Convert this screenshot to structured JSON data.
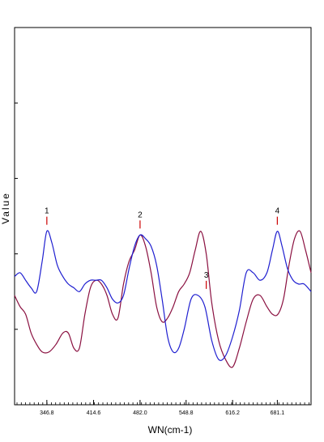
{
  "chart_data": {
    "type": "line",
    "title": "",
    "xlabel": "WN(cm-1)",
    "ylabel": "Value",
    "xlim": [
      300,
      730
    ],
    "ylim": [
      0,
      1
    ],
    "x_ticks": [
      "346.8",
      "414.6",
      "482.0",
      "548.8",
      "616.2",
      "681.1"
    ],
    "x_tick_values": [
      346.8,
      414.6,
      482.0,
      548.8,
      616.2,
      681.1
    ],
    "grid": false,
    "legend": "none",
    "colors": {
      "series_1": "#1f1fd0",
      "series_2": "#8a1040",
      "marker": "#cc0000",
      "axis": "#000000"
    },
    "series": [
      {
        "color": "#1f1fd0",
        "x": [
          300,
          308,
          316,
          324,
          332,
          340,
          346.8,
          354,
          362,
          370,
          378,
          386,
          394,
          402,
          410,
          418,
          426,
          434,
          442,
          450,
          458,
          466,
          474,
          482,
          490,
          498,
          506,
          514,
          522,
          530,
          538,
          546,
          556,
          566,
          576,
          586,
          596,
          606,
          616.2,
          626,
          636,
          646,
          656,
          666,
          674,
          681.1,
          688,
          696,
          704,
          712,
          720,
          730
        ],
        "y": [
          0.34,
          0.35,
          0.33,
          0.31,
          0.3,
          0.38,
          0.46,
          0.43,
          0.37,
          0.34,
          0.32,
          0.31,
          0.3,
          0.32,
          0.33,
          0.33,
          0.33,
          0.31,
          0.28,
          0.27,
          0.29,
          0.36,
          0.42,
          0.45,
          0.44,
          0.42,
          0.37,
          0.28,
          0.18,
          0.14,
          0.15,
          0.2,
          0.28,
          0.29,
          0.26,
          0.17,
          0.12,
          0.13,
          0.18,
          0.25,
          0.35,
          0.35,
          0.33,
          0.35,
          0.41,
          0.46,
          0.42,
          0.36,
          0.33,
          0.32,
          0.32,
          0.3
        ]
      },
      {
        "color": "#8a1040",
        "x": [
          300,
          308,
          316,
          324,
          332,
          340,
          350,
          360,
          370,
          378,
          386,
          394,
          402,
          410,
          418,
          426,
          434,
          442,
          450,
          458,
          466,
          474,
          482,
          490,
          498,
          506,
          514,
          522,
          530,
          538,
          546,
          554,
          562,
          570,
          578,
          586,
          596,
          606,
          616.2,
          626,
          636,
          646,
          656,
          666,
          674,
          682,
          690,
          698,
          706,
          714,
          722,
          730
        ],
        "y": [
          0.29,
          0.26,
          0.24,
          0.19,
          0.16,
          0.14,
          0.14,
          0.16,
          0.19,
          0.19,
          0.15,
          0.15,
          0.24,
          0.31,
          0.33,
          0.32,
          0.29,
          0.24,
          0.23,
          0.32,
          0.38,
          0.41,
          0.45,
          0.42,
          0.35,
          0.26,
          0.22,
          0.23,
          0.26,
          0.3,
          0.32,
          0.35,
          0.41,
          0.46,
          0.4,
          0.27,
          0.17,
          0.12,
          0.1,
          0.15,
          0.22,
          0.28,
          0.29,
          0.26,
          0.24,
          0.24,
          0.28,
          0.37,
          0.44,
          0.46,
          0.41,
          0.35
        ]
      }
    ],
    "annotations": [
      {
        "label": "1",
        "x": 346.8,
        "y": 0.46
      },
      {
        "label": "2",
        "x": 482.0,
        "y": 0.45
      },
      {
        "label": "3",
        "x": 578.0,
        "y": 0.29
      },
      {
        "label": "4",
        "x": 681.1,
        "y": 0.46
      }
    ]
  }
}
